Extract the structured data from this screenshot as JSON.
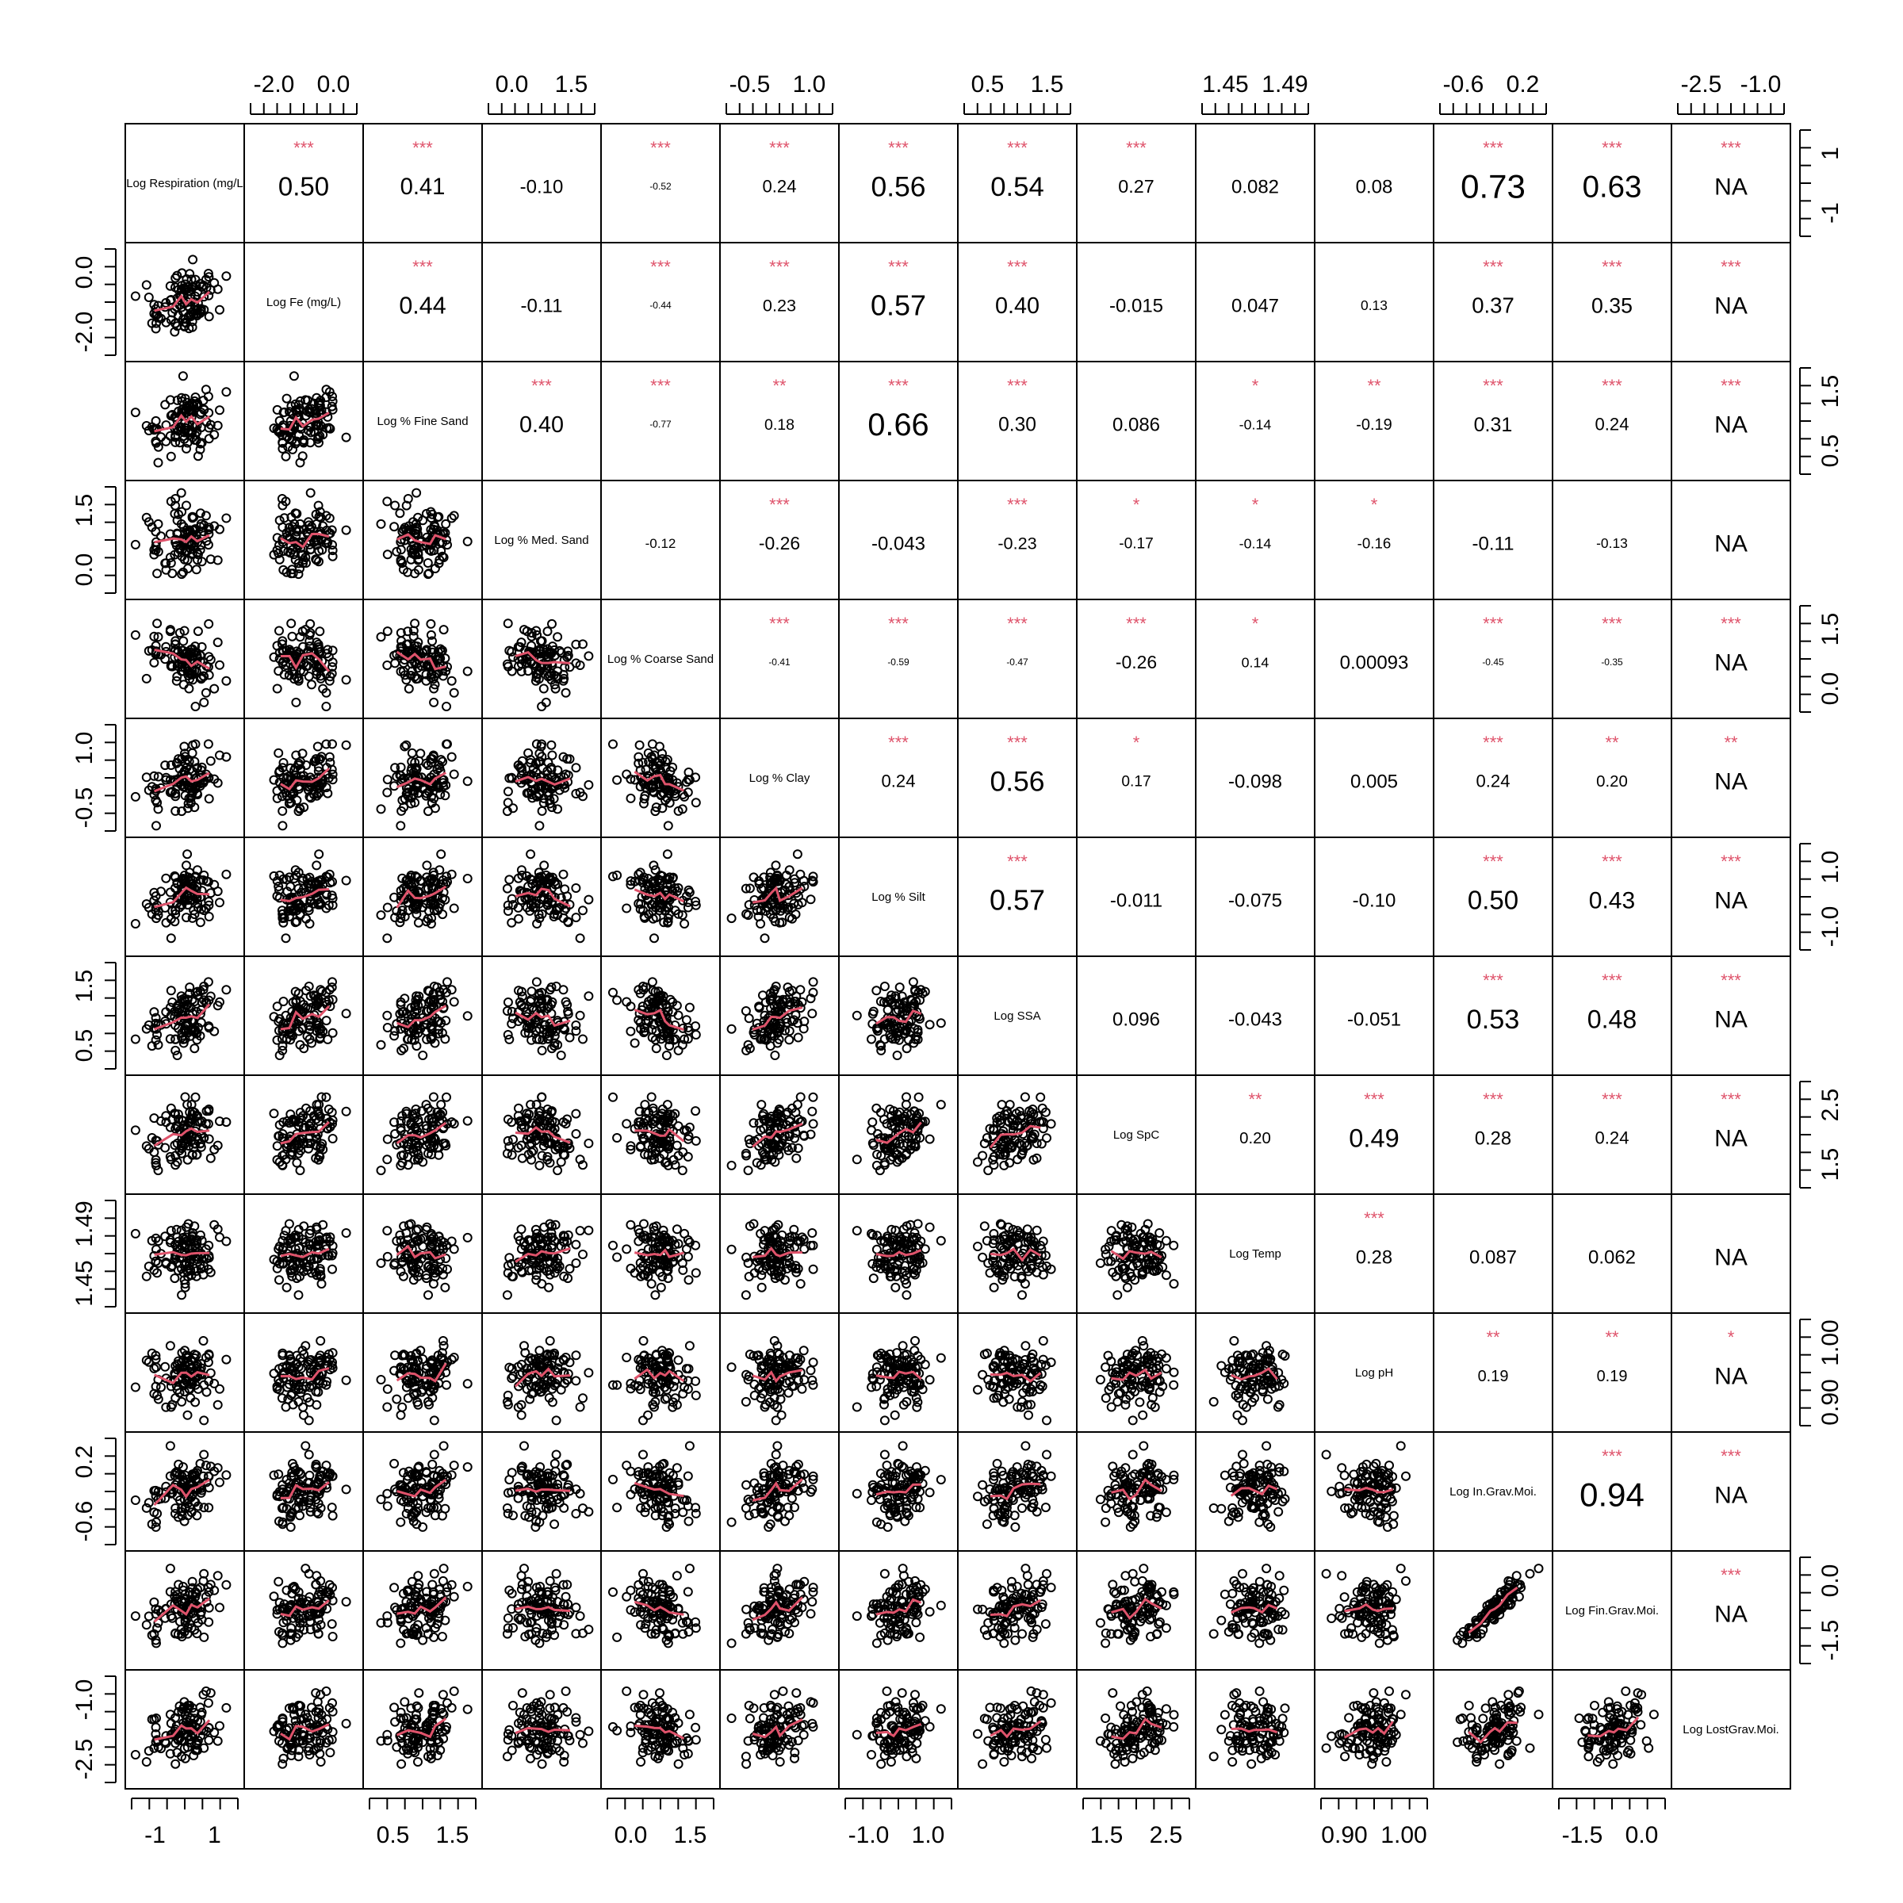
{
  "chart_data": {
    "type": "scatter_matrix",
    "title": "",
    "variables": [
      "Log Respiration (mg/L",
      "Log Fe (mg/L)",
      "Log % Fine Sand",
      "Log % Med. Sand",
      "Log % Coarse Sand",
      "Log % Clay",
      "Log % Silt",
      "Log SSA",
      "Log SpC",
      "Log Temp",
      "Log pH",
      "Log In.Grav.Moi.",
      "Log Fin.Grav.Moi.",
      "Log LostGrav.Moi."
    ],
    "var_ranges": [
      [
        -2.2,
        2.4
      ],
      [
        -2.6,
        0.6
      ],
      [
        -0.2,
        2.2
      ],
      [
        -0.1,
        1.9
      ],
      [
        -0.3,
        1.9
      ],
      [
        -1.3,
        1.5
      ],
      [
        -1.8,
        1.8
      ],
      [
        0.5,
        2.0
      ],
      [
        1.4,
        3.3
      ],
      [
        1.445,
        1.498
      ],
      [
        0.87,
        1.02
      ],
      [
        -0.65,
        0.45
      ],
      [
        -2.0,
        0.6
      ],
      [
        -3.0,
        -0.1
      ]
    ],
    "top_axis": [
      {
        "col": 1,
        "labels": [
          "-2.0",
          "0.0"
        ]
      },
      {
        "col": 3,
        "labels": [
          "0.0",
          "1.5"
        ]
      },
      {
        "col": 5,
        "labels": [
          "-0.5",
          "1.0"
        ]
      },
      {
        "col": 7,
        "labels": [
          "0.5",
          "1.5"
        ]
      },
      {
        "col": 9,
        "labels": [
          "1.45",
          "1.49"
        ]
      },
      {
        "col": 11,
        "labels": [
          "-0.6",
          "0.2"
        ]
      },
      {
        "col": 13,
        "labels": [
          "-2.5",
          "-1.0"
        ]
      }
    ],
    "bottom_axis": [
      {
        "col": 0,
        "labels": [
          "-1",
          "1"
        ]
      },
      {
        "col": 2,
        "labels": [
          "0.5",
          "1.5"
        ]
      },
      {
        "col": 4,
        "labels": [
          "0.0",
          "1.5"
        ]
      },
      {
        "col": 6,
        "labels": [
          "-1.0",
          "1.0"
        ]
      },
      {
        "col": 8,
        "labels": [
          "1.5",
          "2.5"
        ]
      },
      {
        "col": 10,
        "labels": [
          "0.90",
          "1.00"
        ]
      },
      {
        "col": 12,
        "labels": [
          "-1.5",
          "0.0"
        ]
      }
    ],
    "left_axis": [
      {
        "row": 1,
        "labels": [
          "0.0",
          "-2.0"
        ]
      },
      {
        "row": 3,
        "labels": [
          "1.5",
          "0.0"
        ]
      },
      {
        "row": 5,
        "labels": [
          "1.0",
          "-0.5"
        ]
      },
      {
        "row": 7,
        "labels": [
          "1.5",
          "0.5"
        ]
      },
      {
        "row": 9,
        "labels": [
          "1.49",
          "1.45"
        ]
      },
      {
        "row": 11,
        "labels": [
          "0.2",
          "-0.6"
        ]
      },
      {
        "row": 13,
        "labels": [
          "-1.0",
          "-2.5"
        ]
      }
    ],
    "right_axis": [
      {
        "row": 0,
        "labels": [
          "1",
          "-1"
        ]
      },
      {
        "row": 2,
        "labels": [
          "1.5",
          "0.5"
        ]
      },
      {
        "row": 4,
        "labels": [
          "1.5",
          "0.0"
        ]
      },
      {
        "row": 6,
        "labels": [
          "1.0",
          "-1.0"
        ]
      },
      {
        "row": 8,
        "labels": [
          "2.5",
          "1.5"
        ]
      },
      {
        "row": 10,
        "labels": [
          "1.00",
          "0.90"
        ]
      },
      {
        "row": 12,
        "labels": [
          "0.0",
          "-1.5"
        ]
      }
    ],
    "correlations": [
      {
        "row": 0,
        "col": 1,
        "r": "0.50",
        "stars": "***"
      },
      {
        "row": 0,
        "col": 2,
        "r": "0.41",
        "stars": "***"
      },
      {
        "row": 0,
        "col": 3,
        "r": "-0.10",
        "stars": ""
      },
      {
        "row": 0,
        "col": 4,
        "r": "-0.52",
        "stars": "***"
      },
      {
        "row": 0,
        "col": 5,
        "r": "0.24",
        "stars": "***"
      },
      {
        "row": 0,
        "col": 6,
        "r": "0.56",
        "stars": "***"
      },
      {
        "row": 0,
        "col": 7,
        "r": "0.54",
        "stars": "***"
      },
      {
        "row": 0,
        "col": 8,
        "r": "0.27",
        "stars": "***"
      },
      {
        "row": 0,
        "col": 9,
        "r": "0.082",
        "stars": ""
      },
      {
        "row": 0,
        "col": 10,
        "r": "0.08",
        "stars": ""
      },
      {
        "row": 0,
        "col": 11,
        "r": "0.73",
        "stars": "***"
      },
      {
        "row": 0,
        "col": 12,
        "r": "0.63",
        "stars": "***"
      },
      {
        "row": 0,
        "col": 13,
        "r": "NA",
        "stars": "***"
      },
      {
        "row": 1,
        "col": 2,
        "r": "0.44",
        "stars": "***"
      },
      {
        "row": 1,
        "col": 3,
        "r": "-0.11",
        "stars": ""
      },
      {
        "row": 1,
        "col": 4,
        "r": "-0.44",
        "stars": "***"
      },
      {
        "row": 1,
        "col": 5,
        "r": "0.23",
        "stars": "***"
      },
      {
        "row": 1,
        "col": 6,
        "r": "0.57",
        "stars": "***"
      },
      {
        "row": 1,
        "col": 7,
        "r": "0.40",
        "stars": "***"
      },
      {
        "row": 1,
        "col": 8,
        "r": "-0.015",
        "stars": ""
      },
      {
        "row": 1,
        "col": 9,
        "r": "0.047",
        "stars": ""
      },
      {
        "row": 1,
        "col": 10,
        "r": "0.13",
        "stars": ""
      },
      {
        "row": 1,
        "col": 11,
        "r": "0.37",
        "stars": "***"
      },
      {
        "row": 1,
        "col": 12,
        "r": "0.35",
        "stars": "***"
      },
      {
        "row": 1,
        "col": 13,
        "r": "NA",
        "stars": "***"
      },
      {
        "row": 2,
        "col": 3,
        "r": "0.40",
        "stars": "***"
      },
      {
        "row": 2,
        "col": 4,
        "r": "-0.77",
        "stars": "***"
      },
      {
        "row": 2,
        "col": 5,
        "r": "0.18",
        "stars": "**"
      },
      {
        "row": 2,
        "col": 6,
        "r": "0.66",
        "stars": "***"
      },
      {
        "row": 2,
        "col": 7,
        "r": "0.30",
        "stars": "***"
      },
      {
        "row": 2,
        "col": 8,
        "r": "0.086",
        "stars": ""
      },
      {
        "row": 2,
        "col": 9,
        "r": "-0.14",
        "stars": "*"
      },
      {
        "row": 2,
        "col": 10,
        "r": "-0.19",
        "stars": "**"
      },
      {
        "row": 2,
        "col": 11,
        "r": "0.31",
        "stars": "***"
      },
      {
        "row": 2,
        "col": 12,
        "r": "0.24",
        "stars": "***"
      },
      {
        "row": 2,
        "col": 13,
        "r": "NA",
        "stars": "***"
      },
      {
        "row": 3,
        "col": 4,
        "r": "-0.12",
        "stars": ""
      },
      {
        "row": 3,
        "col": 5,
        "r": "-0.26",
        "stars": "***"
      },
      {
        "row": 3,
        "col": 6,
        "r": "-0.043",
        "stars": ""
      },
      {
        "row": 3,
        "col": 7,
        "r": "-0.23",
        "stars": "***"
      },
      {
        "row": 3,
        "col": 8,
        "r": "-0.17",
        "stars": "*"
      },
      {
        "row": 3,
        "col": 9,
        "r": "-0.14",
        "stars": "*"
      },
      {
        "row": 3,
        "col": 10,
        "r": "-0.16",
        "stars": "*"
      },
      {
        "row": 3,
        "col": 11,
        "r": "-0.11",
        "stars": ""
      },
      {
        "row": 3,
        "col": 12,
        "r": "-0.13",
        "stars": ""
      },
      {
        "row": 3,
        "col": 13,
        "r": "NA",
        "stars": ""
      },
      {
        "row": 4,
        "col": 5,
        "r": "-0.41",
        "stars": "***"
      },
      {
        "row": 4,
        "col": 6,
        "r": "-0.59",
        "stars": "***"
      },
      {
        "row": 4,
        "col": 7,
        "r": "-0.47",
        "stars": "***"
      },
      {
        "row": 4,
        "col": 8,
        "r": "-0.26",
        "stars": "***"
      },
      {
        "row": 4,
        "col": 9,
        "r": "0.14",
        "stars": "*"
      },
      {
        "row": 4,
        "col": 10,
        "r": "0.00093",
        "stars": ""
      },
      {
        "row": 4,
        "col": 11,
        "r": "-0.45",
        "stars": "***"
      },
      {
        "row": 4,
        "col": 12,
        "r": "-0.35",
        "stars": "***"
      },
      {
        "row": 4,
        "col": 13,
        "r": "NA",
        "stars": "***"
      },
      {
        "row": 5,
        "col": 6,
        "r": "0.24",
        "stars": "***"
      },
      {
        "row": 5,
        "col": 7,
        "r": "0.56",
        "stars": "***"
      },
      {
        "row": 5,
        "col": 8,
        "r": "0.17",
        "stars": "*"
      },
      {
        "row": 5,
        "col": 9,
        "r": "-0.098",
        "stars": ""
      },
      {
        "row": 5,
        "col": 10,
        "r": "0.005",
        "stars": ""
      },
      {
        "row": 5,
        "col": 11,
        "r": "0.24",
        "stars": "***"
      },
      {
        "row": 5,
        "col": 12,
        "r": "0.20",
        "stars": "**"
      },
      {
        "row": 5,
        "col": 13,
        "r": "NA",
        "stars": "**"
      },
      {
        "row": 6,
        "col": 7,
        "r": "0.57",
        "stars": "***"
      },
      {
        "row": 6,
        "col": 8,
        "r": "-0.011",
        "stars": ""
      },
      {
        "row": 6,
        "col": 9,
        "r": "-0.075",
        "stars": ""
      },
      {
        "row": 6,
        "col": 10,
        "r": "-0.10",
        "stars": ""
      },
      {
        "row": 6,
        "col": 11,
        "r": "0.50",
        "stars": "***"
      },
      {
        "row": 6,
        "col": 12,
        "r": "0.43",
        "stars": "***"
      },
      {
        "row": 6,
        "col": 13,
        "r": "NA",
        "stars": "***"
      },
      {
        "row": 7,
        "col": 8,
        "r": "0.096",
        "stars": ""
      },
      {
        "row": 7,
        "col": 9,
        "r": "-0.043",
        "stars": ""
      },
      {
        "row": 7,
        "col": 10,
        "r": "-0.051",
        "stars": ""
      },
      {
        "row": 7,
        "col": 11,
        "r": "0.53",
        "stars": "***"
      },
      {
        "row": 7,
        "col": 12,
        "r": "0.48",
        "stars": "***"
      },
      {
        "row": 7,
        "col": 13,
        "r": "NA",
        "stars": "***"
      },
      {
        "row": 8,
        "col": 9,
        "r": "0.20",
        "stars": "**"
      },
      {
        "row": 8,
        "col": 10,
        "r": "0.49",
        "stars": "***"
      },
      {
        "row": 8,
        "col": 11,
        "r": "0.28",
        "stars": "***"
      },
      {
        "row": 8,
        "col": 12,
        "r": "0.24",
        "stars": "***"
      },
      {
        "row": 8,
        "col": 13,
        "r": "NA",
        "stars": "***"
      },
      {
        "row": 9,
        "col": 10,
        "r": "0.28",
        "stars": "***"
      },
      {
        "row": 9,
        "col": 11,
        "r": "0.087",
        "stars": ""
      },
      {
        "row": 9,
        "col": 12,
        "r": "0.062",
        "stars": ""
      },
      {
        "row": 9,
        "col": 13,
        "r": "NA",
        "stars": ""
      },
      {
        "row": 10,
        "col": 11,
        "r": "0.19",
        "stars": "**"
      },
      {
        "row": 10,
        "col": 12,
        "r": "0.19",
        "stars": "**"
      },
      {
        "row": 10,
        "col": 13,
        "r": "NA",
        "stars": "*"
      },
      {
        "row": 11,
        "col": 12,
        "r": "0.94",
        "stars": "***"
      },
      {
        "row": 11,
        "col": 13,
        "r": "NA",
        "stars": "***"
      },
      {
        "row": 12,
        "col": 13,
        "r": "NA",
        "stars": "***"
      }
    ],
    "point_color": "#000000",
    "smooth_color": "#DF536B",
    "stars_color": "#DF536B",
    "grid": false,
    "legend": "none"
  }
}
